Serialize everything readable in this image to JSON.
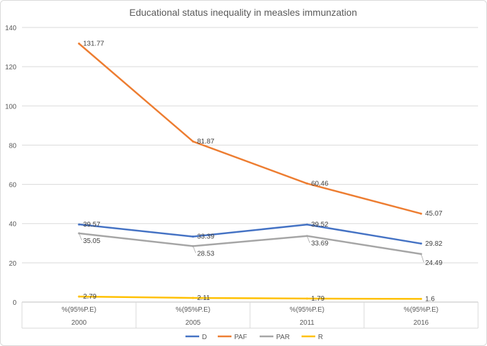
{
  "chart_data": {
    "type": "line",
    "title": "Educational status inequality in measles immunzation",
    "categories": [
      "2000",
      "2005",
      "2011",
      "2016"
    ],
    "category_sublabel": "%(95%P.E)",
    "ylim": [
      0,
      140
    ],
    "yticks": [
      0,
      20,
      40,
      60,
      80,
      100,
      120,
      140
    ],
    "grid": true,
    "legend_position": "bottom",
    "series": [
      {
        "name": "D",
        "color": "#4472C4",
        "values": [
          39.57,
          33.39,
          39.52,
          29.82
        ],
        "labels": [
          "39.57",
          "33.39",
          "39.52",
          "29.82"
        ]
      },
      {
        "name": "PAF",
        "color": "#ED7D31",
        "values": [
          131.77,
          81.87,
          60.46,
          45.07
        ],
        "labels": [
          "131.77",
          "81.87",
          "60.46",
          "45.07"
        ]
      },
      {
        "name": "PAR",
        "color": "#A5A5A5",
        "values": [
          35.05,
          28.53,
          33.69,
          24.49
        ],
        "labels": [
          "35.05",
          "28.53",
          "33.69",
          "24.49"
        ]
      },
      {
        "name": "R",
        "color": "#FFC000",
        "values": [
          2.79,
          2.11,
          1.79,
          1.6
        ],
        "labels": [
          "2.79",
          "2.11",
          "1.79",
          "1.6"
        ]
      }
    ]
  }
}
